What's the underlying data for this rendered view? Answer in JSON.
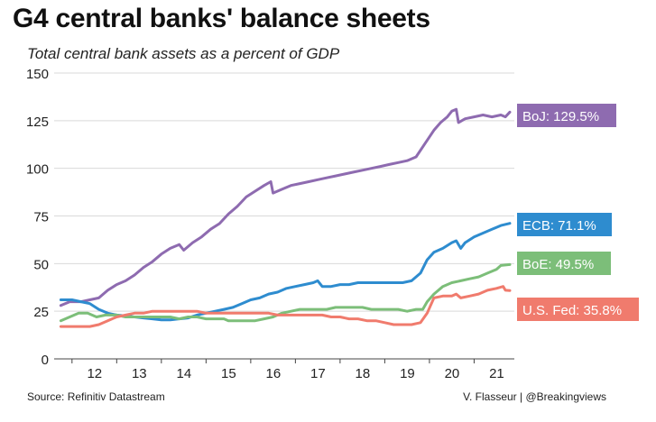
{
  "title": "G4 central banks' balance sheets",
  "subtitle": "Total central bank assets as a percent of GDP",
  "source": "Source: Refinitiv Datastream",
  "credit": "V. Flasseur | @Breakingviews",
  "chart_data": {
    "type": "line",
    "ylim": [
      0,
      150
    ],
    "y_ticks": [
      0,
      25,
      50,
      75,
      100,
      125,
      150
    ],
    "xlim": [
      2011.6,
      2021.9
    ],
    "x_ticks": [
      {
        "value": 2012,
        "label": "12"
      },
      {
        "value": 2013,
        "label": "13"
      },
      {
        "value": 2014,
        "label": "14"
      },
      {
        "value": 2015,
        "label": "15"
      },
      {
        "value": 2016,
        "label": "16"
      },
      {
        "value": 2017,
        "label": "17"
      },
      {
        "value": 2018,
        "label": "18"
      },
      {
        "value": 2019,
        "label": "19"
      },
      {
        "value": 2020,
        "label": "20"
      },
      {
        "value": 2021,
        "label": "21"
      }
    ],
    "grid": true,
    "series": [
      {
        "name": "BoJ",
        "end_label": "BoJ: 129.5%",
        "color": "#8e6bb0",
        "points": [
          [
            2011.75,
            28
          ],
          [
            2011.95,
            30
          ],
          [
            2012.2,
            30
          ],
          [
            2012.4,
            31
          ],
          [
            2012.6,
            32
          ],
          [
            2012.8,
            36
          ],
          [
            2013.0,
            39
          ],
          [
            2013.2,
            41
          ],
          [
            2013.4,
            44
          ],
          [
            2013.6,
            48
          ],
          [
            2013.8,
            51
          ],
          [
            2014.0,
            55
          ],
          [
            2014.2,
            58
          ],
          [
            2014.4,
            60
          ],
          [
            2014.5,
            57
          ],
          [
            2014.7,
            61
          ],
          [
            2014.9,
            64
          ],
          [
            2015.1,
            68
          ],
          [
            2015.3,
            71
          ],
          [
            2015.5,
            76
          ],
          [
            2015.7,
            80
          ],
          [
            2015.9,
            85
          ],
          [
            2016.1,
            88
          ],
          [
            2016.3,
            91
          ],
          [
            2016.45,
            93
          ],
          [
            2016.5,
            87
          ],
          [
            2016.7,
            89
          ],
          [
            2016.9,
            91
          ],
          [
            2017.1,
            92
          ],
          [
            2017.3,
            93
          ],
          [
            2017.5,
            94
          ],
          [
            2017.7,
            95
          ],
          [
            2017.9,
            96
          ],
          [
            2018.1,
            97
          ],
          [
            2018.3,
            98
          ],
          [
            2018.5,
            99
          ],
          [
            2018.7,
            100
          ],
          [
            2018.9,
            101
          ],
          [
            2019.1,
            102
          ],
          [
            2019.3,
            103
          ],
          [
            2019.5,
            104
          ],
          [
            2019.7,
            106
          ],
          [
            2019.9,
            113
          ],
          [
            2020.1,
            120
          ],
          [
            2020.25,
            124
          ],
          [
            2020.4,
            127
          ],
          [
            2020.5,
            130
          ],
          [
            2020.6,
            131
          ],
          [
            2020.65,
            124
          ],
          [
            2020.8,
            126
          ],
          [
            2021.0,
            127
          ],
          [
            2021.2,
            128
          ],
          [
            2021.4,
            127
          ],
          [
            2021.6,
            128
          ],
          [
            2021.7,
            127
          ],
          [
            2021.8,
            129.5
          ]
        ]
      },
      {
        "name": "ECB",
        "end_label": "ECB: 71.1%",
        "color": "#2e8ccf",
        "points": [
          [
            2011.75,
            31
          ],
          [
            2012.0,
            31
          ],
          [
            2012.2,
            30
          ],
          [
            2012.4,
            29
          ],
          [
            2012.6,
            26
          ],
          [
            2012.8,
            24
          ],
          [
            2013.0,
            23
          ],
          [
            2013.2,
            22.5
          ],
          [
            2013.4,
            22
          ],
          [
            2013.6,
            21.5
          ],
          [
            2013.8,
            21
          ],
          [
            2014.0,
            20.5
          ],
          [
            2014.2,
            20.5
          ],
          [
            2014.4,
            21
          ],
          [
            2014.6,
            21.5
          ],
          [
            2014.8,
            23
          ],
          [
            2015.0,
            24
          ],
          [
            2015.2,
            25
          ],
          [
            2015.4,
            26
          ],
          [
            2015.6,
            27
          ],
          [
            2015.8,
            29
          ],
          [
            2016.0,
            31
          ],
          [
            2016.2,
            32
          ],
          [
            2016.4,
            34
          ],
          [
            2016.6,
            35
          ],
          [
            2016.8,
            37
          ],
          [
            2017.0,
            38
          ],
          [
            2017.2,
            39
          ],
          [
            2017.4,
            40
          ],
          [
            2017.5,
            41
          ],
          [
            2017.6,
            38
          ],
          [
            2017.8,
            38
          ],
          [
            2018.0,
            39
          ],
          [
            2018.2,
            39
          ],
          [
            2018.4,
            40
          ],
          [
            2018.6,
            40
          ],
          [
            2018.8,
            40
          ],
          [
            2019.0,
            40
          ],
          [
            2019.2,
            40
          ],
          [
            2019.4,
            40
          ],
          [
            2019.6,
            41
          ],
          [
            2019.8,
            45
          ],
          [
            2019.95,
            52
          ],
          [
            2020.1,
            56
          ],
          [
            2020.3,
            58
          ],
          [
            2020.5,
            61
          ],
          [
            2020.6,
            62
          ],
          [
            2020.7,
            58
          ],
          [
            2020.8,
            61
          ],
          [
            2021.0,
            64
          ],
          [
            2021.2,
            66
          ],
          [
            2021.4,
            68
          ],
          [
            2021.6,
            70
          ],
          [
            2021.8,
            71.1
          ]
        ]
      },
      {
        "name": "BoE",
        "end_label": "BoE: 49.5%",
        "color": "#7cbe79",
        "points": [
          [
            2011.75,
            20
          ],
          [
            2011.95,
            22
          ],
          [
            2012.15,
            24
          ],
          [
            2012.35,
            24
          ],
          [
            2012.55,
            22
          ],
          [
            2012.75,
            23
          ],
          [
            2013.0,
            23
          ],
          [
            2013.2,
            22
          ],
          [
            2013.4,
            22
          ],
          [
            2013.6,
            22
          ],
          [
            2013.8,
            22
          ],
          [
            2014.0,
            22
          ],
          [
            2014.2,
            22
          ],
          [
            2014.4,
            21
          ],
          [
            2014.6,
            22
          ],
          [
            2014.8,
            22
          ],
          [
            2015.0,
            21
          ],
          [
            2015.2,
            21
          ],
          [
            2015.4,
            21
          ],
          [
            2015.5,
            20
          ],
          [
            2015.7,
            20
          ],
          [
            2015.9,
            20
          ],
          [
            2016.1,
            20
          ],
          [
            2016.3,
            21
          ],
          [
            2016.5,
            22
          ],
          [
            2016.7,
            24
          ],
          [
            2016.9,
            25
          ],
          [
            2017.1,
            26
          ],
          [
            2017.3,
            26
          ],
          [
            2017.5,
            26
          ],
          [
            2017.7,
            26
          ],
          [
            2017.9,
            27
          ],
          [
            2018.1,
            27
          ],
          [
            2018.3,
            27
          ],
          [
            2018.5,
            27
          ],
          [
            2018.7,
            26
          ],
          [
            2018.9,
            26
          ],
          [
            2019.1,
            26
          ],
          [
            2019.3,
            26
          ],
          [
            2019.5,
            25
          ],
          [
            2019.7,
            26
          ],
          [
            2019.85,
            26
          ],
          [
            2019.95,
            30
          ],
          [
            2020.1,
            34
          ],
          [
            2020.3,
            38
          ],
          [
            2020.5,
            40
          ],
          [
            2020.7,
            41
          ],
          [
            2020.9,
            42
          ],
          [
            2021.1,
            43
          ],
          [
            2021.3,
            45
          ],
          [
            2021.5,
            47
          ],
          [
            2021.6,
            49
          ],
          [
            2021.8,
            49.5
          ]
        ]
      },
      {
        "name": "U.S. Fed",
        "end_label": "U.S. Fed: 35.8%",
        "color": "#f07b6d",
        "points": [
          [
            2011.75,
            17
          ],
          [
            2012.0,
            17
          ],
          [
            2012.2,
            17
          ],
          [
            2012.4,
            17
          ],
          [
            2012.6,
            18
          ],
          [
            2012.8,
            20
          ],
          [
            2013.0,
            22
          ],
          [
            2013.2,
            23
          ],
          [
            2013.4,
            24
          ],
          [
            2013.6,
            24
          ],
          [
            2013.8,
            25
          ],
          [
            2014.0,
            25
          ],
          [
            2014.2,
            25
          ],
          [
            2014.4,
            25
          ],
          [
            2014.6,
            25
          ],
          [
            2014.8,
            25
          ],
          [
            2015.0,
            24
          ],
          [
            2015.2,
            24
          ],
          [
            2015.4,
            24
          ],
          [
            2015.6,
            24
          ],
          [
            2015.8,
            24
          ],
          [
            2016.0,
            24
          ],
          [
            2016.2,
            24
          ],
          [
            2016.4,
            24
          ],
          [
            2016.6,
            23
          ],
          [
            2016.8,
            23
          ],
          [
            2017.0,
            23
          ],
          [
            2017.2,
            23
          ],
          [
            2017.4,
            23
          ],
          [
            2017.6,
            23
          ],
          [
            2017.8,
            22
          ],
          [
            2018.0,
            22
          ],
          [
            2018.2,
            21
          ],
          [
            2018.4,
            21
          ],
          [
            2018.6,
            20
          ],
          [
            2018.8,
            20
          ],
          [
            2019.0,
            19
          ],
          [
            2019.2,
            18
          ],
          [
            2019.4,
            18
          ],
          [
            2019.6,
            18
          ],
          [
            2019.8,
            19
          ],
          [
            2019.95,
            24
          ],
          [
            2020.1,
            32
          ],
          [
            2020.3,
            33
          ],
          [
            2020.5,
            33
          ],
          [
            2020.6,
            34
          ],
          [
            2020.7,
            32
          ],
          [
            2020.9,
            33
          ],
          [
            2021.1,
            34
          ],
          [
            2021.3,
            36
          ],
          [
            2021.5,
            37
          ],
          [
            2021.65,
            38
          ],
          [
            2021.7,
            36
          ],
          [
            2021.8,
            35.8
          ]
        ]
      }
    ]
  }
}
